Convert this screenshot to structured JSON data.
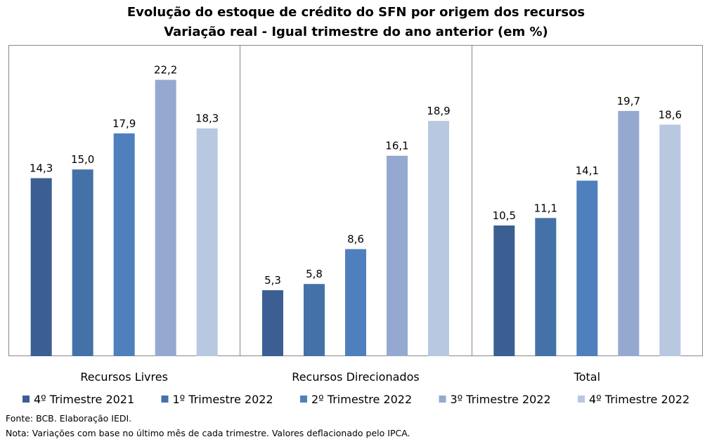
{
  "chart_data": {
    "type": "bar",
    "title": "Evolução do estoque de crédito do SFN por origem dos recursos",
    "subtitle": "Variação real - Igual trimestre do ano anterior (em %)",
    "categories": [
      "Recursos Livres",
      "Recursos Direcionados",
      "Total"
    ],
    "series": [
      {
        "name": "4º Trimestre 2021",
        "color": "#3b5f92",
        "values": [
          14.3,
          5.3,
          10.5
        ],
        "labels": [
          "14,3",
          "5,3",
          "10,5"
        ]
      },
      {
        "name": "1º Trimestre 2022",
        "color": "#4472a8",
        "values": [
          15.0,
          5.8,
          11.1
        ],
        "labels": [
          "15,0",
          "5,8",
          "11,1"
        ]
      },
      {
        "name": "2º Trimestre 2022",
        "color": "#4f80bd",
        "values": [
          17.9,
          8.6,
          14.1
        ],
        "labels": [
          "17,9",
          "8,6",
          "14,1"
        ]
      },
      {
        "name": "3º Trimestre 2022",
        "color": "#95a9d0",
        "values": [
          22.2,
          16.1,
          19.7
        ],
        "labels": [
          "22,2",
          "16,1",
          "19,7"
        ]
      },
      {
        "name": "4º Trimestre 2022",
        "color": "#b9c8e1",
        "values": [
          18.3,
          18.9,
          18.6
        ],
        "labels": [
          "18,3",
          "18,9",
          "18,6"
        ]
      }
    ],
    "ylim": [
      0,
      25
    ],
    "y_axis_visible": false,
    "grid": false,
    "legend": "bottom",
    "category_separators": true
  },
  "notes": {
    "source": "Fonte: BCB. Elaboração IEDI.",
    "method": "Nota: Variações com base no último mês de cada trimestre. Valores deflacionado pelo IPCA."
  }
}
